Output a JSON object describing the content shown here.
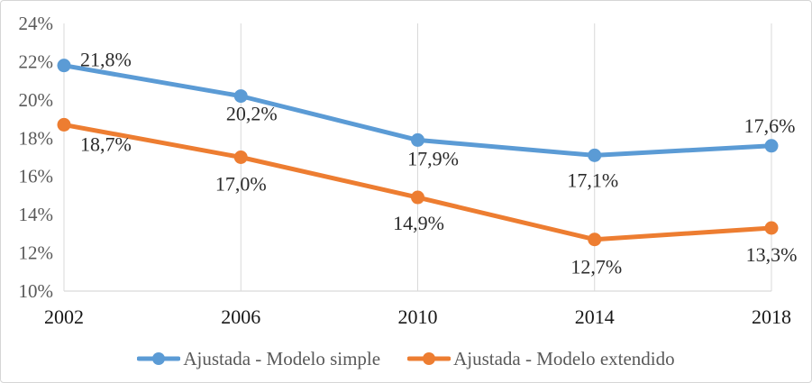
{
  "chart_data": {
    "type": "line",
    "categories": [
      "2002",
      "2006",
      "2010",
      "2014",
      "2018"
    ],
    "series": [
      {
        "name": "Ajustada - Modelo simple",
        "color": "#5B9BD5",
        "values": [
          21.8,
          20.2,
          17.9,
          17.1,
          17.6
        ],
        "labels": [
          "21,8%",
          "20,2%",
          "17,9%",
          "17,1%",
          "17,6%"
        ]
      },
      {
        "name": "Ajustada - Modelo extendido",
        "color": "#ED7D31",
        "values": [
          18.7,
          17.0,
          14.9,
          12.7,
          13.3
        ],
        "labels": [
          "18,7%",
          "17,0%",
          "14,9%",
          "12,7%",
          "13,3%"
        ]
      }
    ],
    "title": "",
    "xlabel": "",
    "ylabel": "",
    "ylim": [
      10,
      24
    ],
    "y_tick_step": 2,
    "y_tick_labels": [
      "10%",
      "12%",
      "14%",
      "16%",
      "18%",
      "20%",
      "22%",
      "24%"
    ],
    "grid": "vertical-only",
    "legend_position": "bottom"
  },
  "colors": {
    "gridline": "#D9D9D9",
    "axis_line": "#D9D9D9",
    "y_tick_text": "#595959",
    "x_tick_text": "#171717",
    "data_label_text": "#2B2B2B",
    "legend_text": "#595959",
    "background": "#FFFFFF",
    "border": "#D6D6D6"
  }
}
